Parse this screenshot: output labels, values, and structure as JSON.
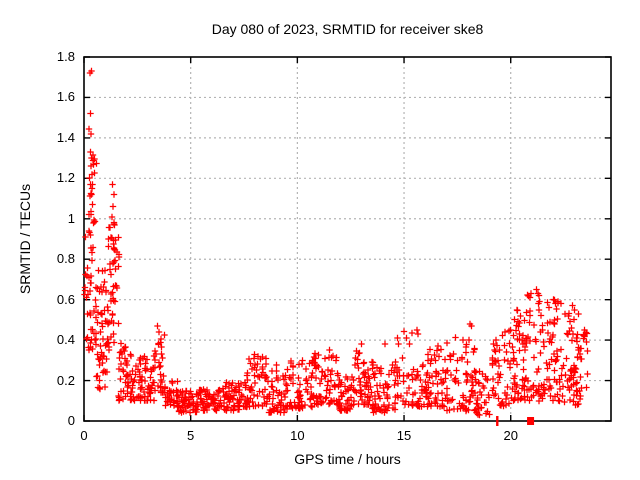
{
  "colors": {
    "marker": "#ff0000",
    "grid": "#b4b4b4",
    "axis": "#000000",
    "background": "#ffffff"
  },
  "chart_data": {
    "type": "scatter",
    "title": "Day 080 of 2023, SRMTID for receiver ske8",
    "xlabel": "GPS time / hours",
    "ylabel": "SRMTID / TECUs",
    "series_name": "SRMTID",
    "marker": "plus",
    "marker_color": "#ff0000",
    "grid": "dashed",
    "legend": "none",
    "xlim": [
      0,
      24.7
    ],
    "ylim": [
      0,
      1.8
    ],
    "xticks": [
      0,
      5,
      10,
      15,
      20
    ],
    "xtick_labels": [
      "0",
      "5",
      "10",
      "15",
      "20"
    ],
    "yticks": [
      0,
      0.2,
      0.4,
      0.6,
      0.8,
      1,
      1.2,
      1.4,
      1.6,
      1.8
    ],
    "ytick_labels": [
      "0",
      "0.2",
      "0.4",
      "0.6",
      "0.8",
      "1",
      "1.2",
      "1.4",
      "1.6",
      "1.8"
    ],
    "description": "Dense red '+' scatter: spike to 1.73 TECUs near 0.3 h, secondary column to 1.17 near 1.4 h, low band 0.05-0.2 from 4-10 h, moderate bumps 0.2-0.38 from 10-18 h, rising activity 0.1-0.65 from 19-23.6 h; two red marks on the x-axis near 19.4 h and 20.9 h.",
    "cluster_format": [
      "x_start_h",
      "x_end_h",
      "y_min_tecu",
      "y_max_tecu",
      "point_count",
      "low_bias_exponent"
    ],
    "clusters": [
      [
        0.02,
        0.2,
        0.4,
        1.0,
        12,
        1.3
      ],
      [
        0.2,
        0.58,
        0.35,
        1.45,
        48,
        1.5
      ],
      [
        0.55,
        1.12,
        0.15,
        0.75,
        48,
        1.2
      ],
      [
        1.1,
        1.65,
        0.35,
        1.0,
        52,
        1.2
      ],
      [
        1.6,
        2.1,
        0.1,
        0.4,
        30,
        1.4
      ],
      [
        2.0,
        3.3,
        0.1,
        0.33,
        85,
        1.7
      ],
      [
        3.3,
        3.8,
        0.14,
        0.45,
        30,
        1.4
      ],
      [
        3.8,
        4.4,
        0.07,
        0.22,
        32,
        1.5
      ],
      [
        4.4,
        5.4,
        0.04,
        0.15,
        60,
        1.3
      ],
      [
        5.4,
        6.4,
        0.05,
        0.16,
        60,
        1.3
      ],
      [
        6.4,
        7.4,
        0.05,
        0.19,
        60,
        1.3
      ],
      [
        7.4,
        8.6,
        0.07,
        0.32,
        70,
        1.6
      ],
      [
        8.6,
        9.6,
        0.04,
        0.28,
        55,
        1.7
      ],
      [
        9.6,
        10.7,
        0.06,
        0.3,
        58,
        1.6
      ],
      [
        10.7,
        11.9,
        0.08,
        0.34,
        70,
        1.6
      ],
      [
        11.9,
        12.6,
        0.05,
        0.22,
        40,
        1.4
      ],
      [
        12.6,
        13.4,
        0.08,
        0.36,
        50,
        1.5
      ],
      [
        13.4,
        14.6,
        0.04,
        0.3,
        62,
        1.6
      ],
      [
        14.6,
        15.4,
        0.08,
        0.45,
        30,
        1.6
      ],
      [
        15.4,
        16.1,
        0.07,
        0.28,
        40,
        1.5
      ],
      [
        16.1,
        16.9,
        0.07,
        0.36,
        45,
        1.5
      ],
      [
        16.9,
        18.35,
        0.05,
        0.42,
        75,
        1.7
      ],
      [
        18.3,
        19.1,
        0.03,
        0.25,
        35,
        1.5
      ],
      [
        19.1,
        19.95,
        0.07,
        0.45,
        42,
        1.5
      ],
      [
        19.9,
        20.65,
        0.1,
        0.55,
        48,
        1.4
      ],
      [
        20.6,
        21.5,
        0.1,
        0.64,
        58,
        1.4
      ],
      [
        21.5,
        22.4,
        0.1,
        0.6,
        58,
        1.4
      ],
      [
        22.4,
        23.3,
        0.08,
        0.56,
        58,
        1.4
      ],
      [
        23.25,
        23.6,
        0.15,
        0.45,
        16,
        1.2
      ]
    ],
    "outlier_points": [
      [
        0.28,
        1.72
      ],
      [
        0.34,
        1.73
      ],
      [
        0.3,
        1.52
      ],
      [
        0.33,
        1.42
      ],
      [
        0.3,
        1.33
      ],
      [
        0.36,
        1.3
      ],
      [
        0.32,
        1.26
      ],
      [
        0.37,
        1.22
      ],
      [
        0.3,
        1.17
      ],
      [
        0.35,
        1.12
      ],
      [
        0.4,
        1.07
      ],
      [
        0.33,
        1.02
      ],
      [
        0.45,
        0.98
      ],
      [
        1.33,
        1.17
      ],
      [
        1.4,
        1.12
      ],
      [
        1.37,
        1.06
      ],
      [
        1.31,
        1.01
      ],
      [
        1.44,
        0.97
      ],
      [
        3.45,
        0.47
      ],
      [
        3.52,
        0.44
      ],
      [
        8.0,
        0.33
      ],
      [
        11.5,
        0.35
      ],
      [
        13.0,
        0.38
      ],
      [
        14.1,
        0.38
      ],
      [
        15.6,
        0.45
      ],
      [
        15.66,
        0.43
      ],
      [
        16.6,
        0.37
      ],
      [
        18.08,
        0.48
      ],
      [
        18.16,
        0.47
      ],
      [
        19.2,
        0.38
      ],
      [
        20.3,
        0.55
      ],
      [
        20.45,
        0.52
      ],
      [
        21.2,
        0.65
      ],
      [
        21.27,
        0.63
      ],
      [
        21.33,
        0.62
      ],
      [
        22.0,
        0.6
      ],
      [
        22.1,
        0.58
      ],
      [
        22.9,
        0.57
      ],
      [
        23.0,
        0.55
      ],
      [
        23.45,
        0.45
      ]
    ],
    "zero_markers": [
      {
        "x": 19.37,
        "style": "bar"
      },
      {
        "x": 20.93,
        "style": "square"
      }
    ],
    "prng_seed": 42
  }
}
